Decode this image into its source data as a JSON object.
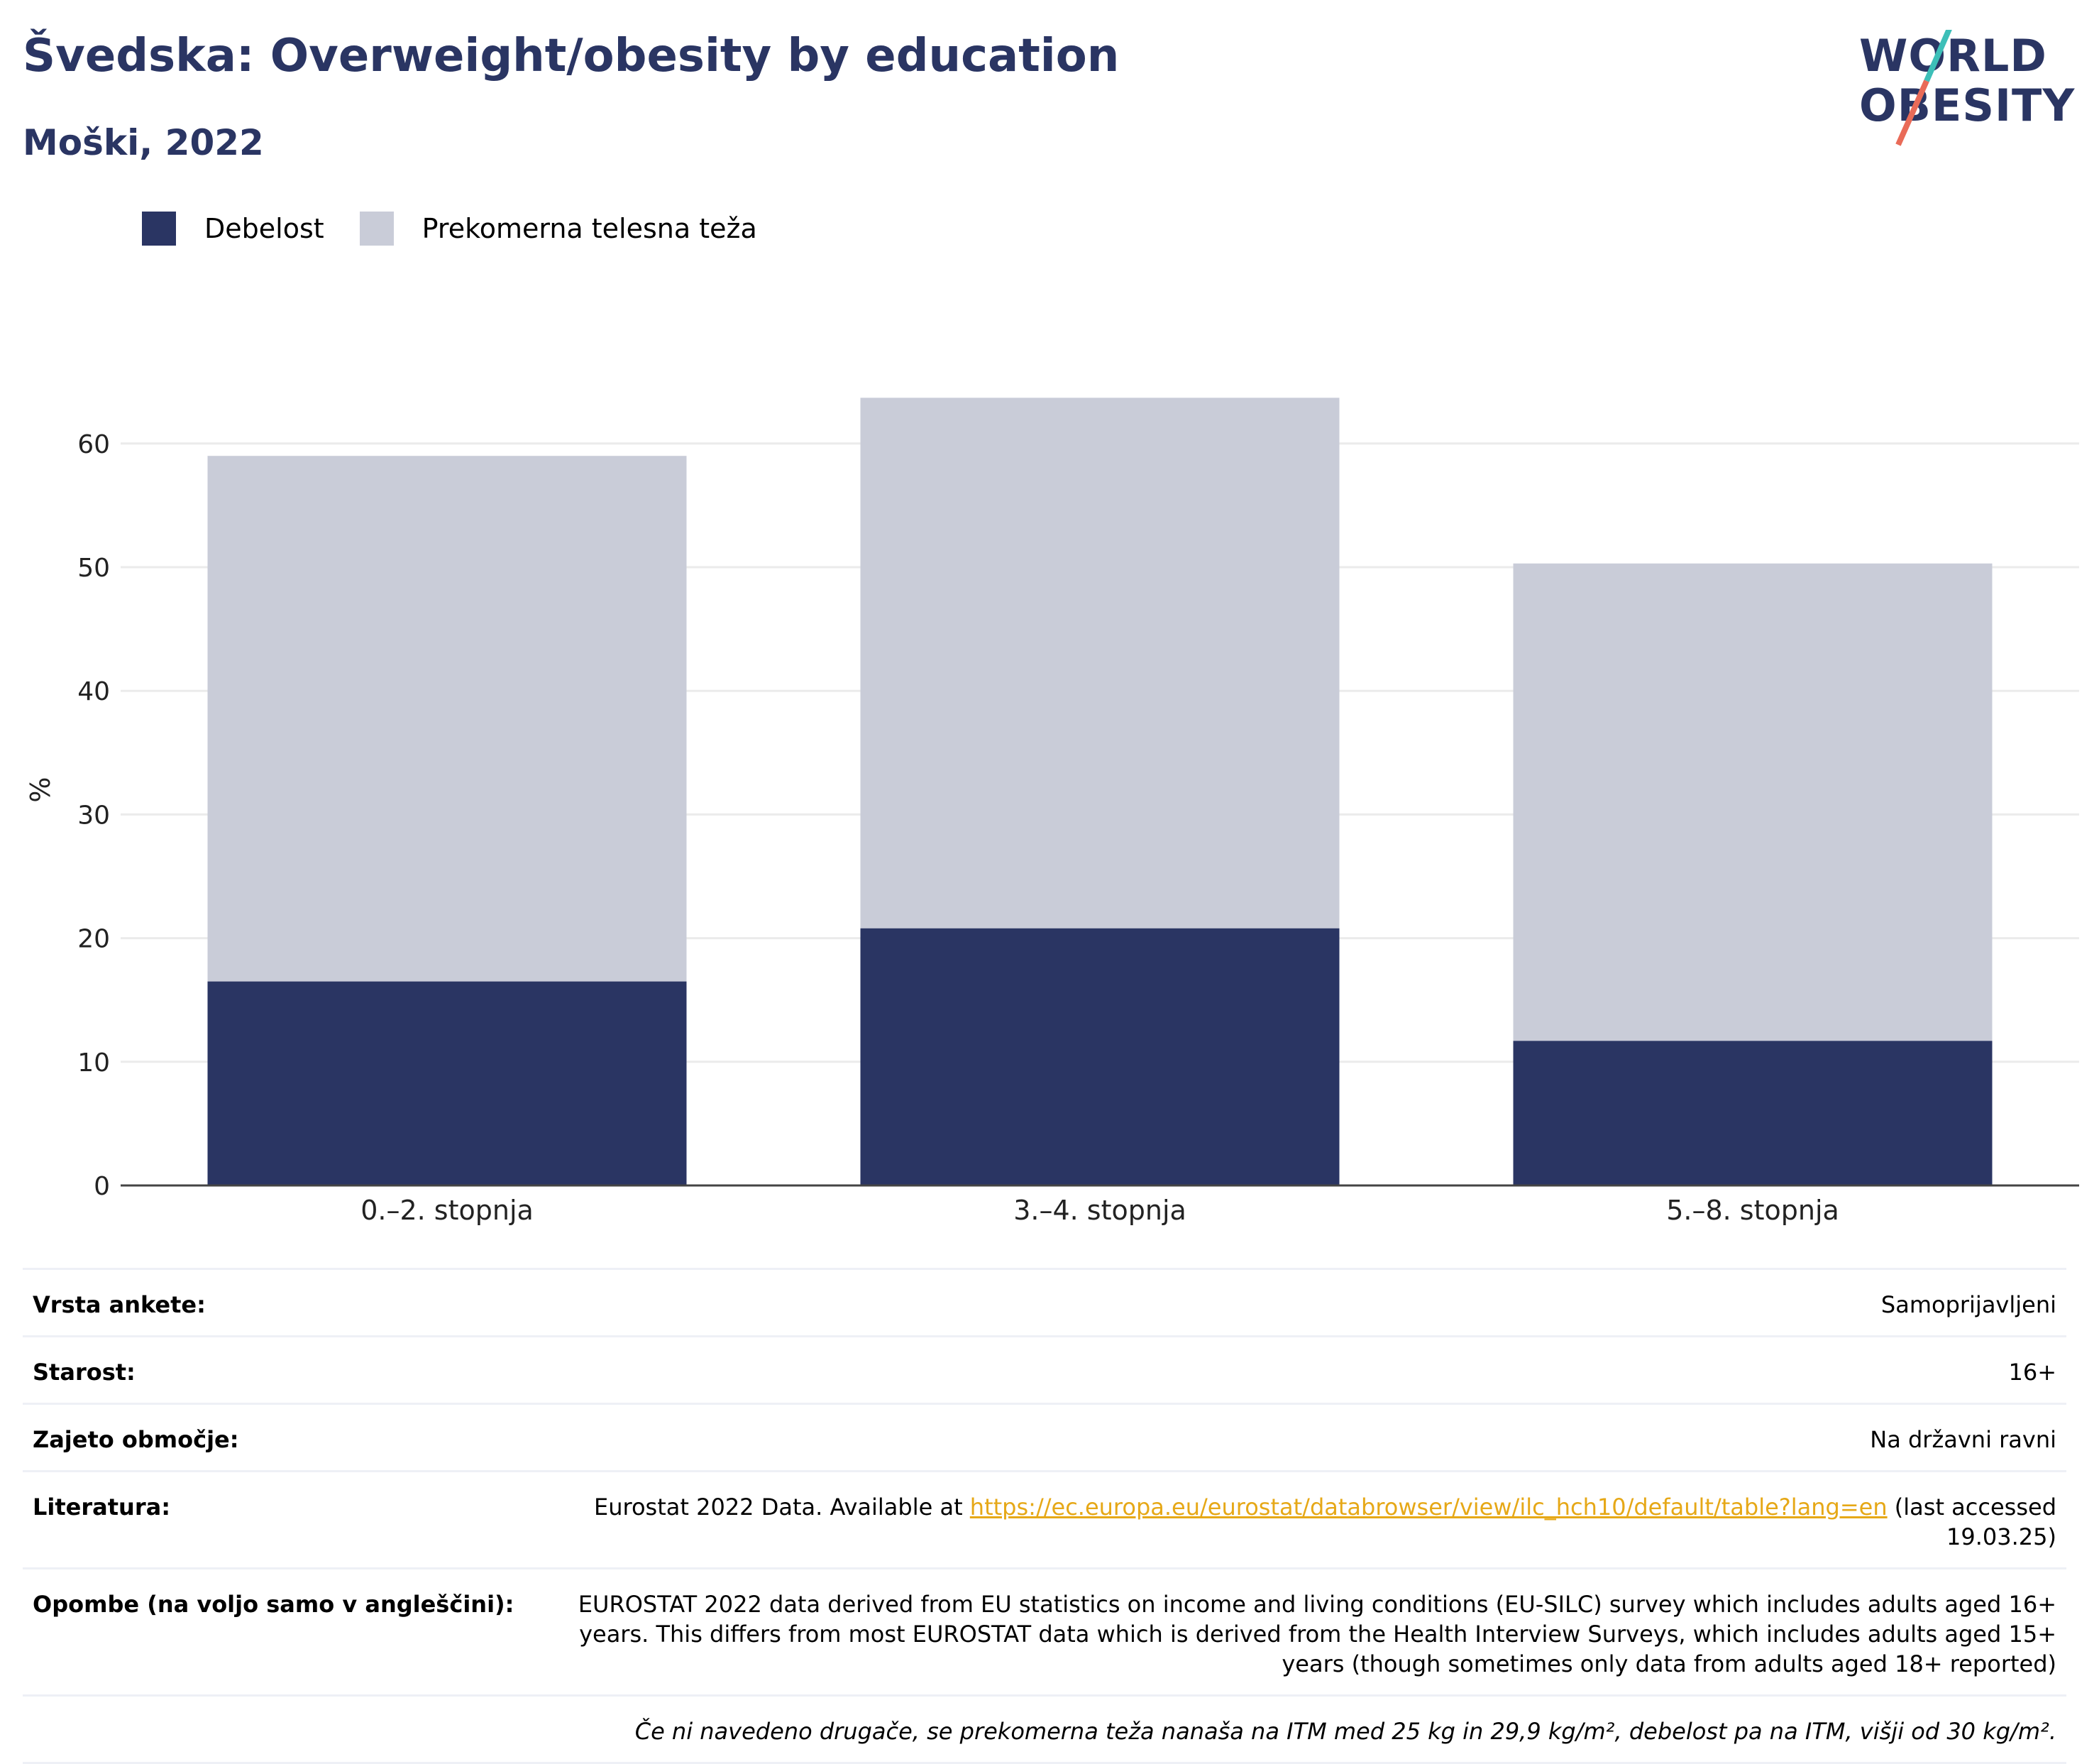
{
  "header": {
    "title": "Švedska: Overweight/obesity by education",
    "subtitle": "Moški, 2022",
    "logo_line1": "WORLD",
    "logo_line2": "OBESITY"
  },
  "legend": {
    "obesity": "Debelost",
    "overweight": "Prekomerna telesna teža"
  },
  "colors": {
    "obesity": "#2a3563",
    "overweight": "#c9ccd8",
    "title": "#2a3563",
    "link": "#e6a817"
  },
  "chart_data": {
    "type": "bar",
    "stacked": true,
    "categories": [
      "0.–2. stopnja",
      "3.–4. stopnja",
      "5.–8. stopnja"
    ],
    "series": [
      {
        "name": "Debelost",
        "values": [
          16.5,
          20.8,
          11.7
        ]
      },
      {
        "name": "Prekomerna telesna teža",
        "values": [
          42.5,
          42.9,
          38.6
        ]
      }
    ],
    "totals": [
      59.0,
      63.7,
      50.3
    ],
    "ylabel": "%",
    "ylim": [
      0,
      64
    ],
    "yticks": [
      0,
      10,
      20,
      30,
      40,
      50,
      60
    ],
    "grid": true,
    "legend_position": "top-left"
  },
  "meta": {
    "survey_label": "Vrsta ankete:",
    "survey_value": "Samoprijavljeni",
    "age_label": "Starost:",
    "age_value": "16+",
    "coverage_label": "Zajeto območje:",
    "coverage_value": "Na državni ravni",
    "refs_label": "Literatura:",
    "refs_prefix": "Eurostat 2022 Data. Available at ",
    "refs_link": "https://ec.europa.eu/eurostat/databrowser/view/ilc_hch10/default/table?lang=en",
    "refs_suffix": " (last accessed 19.03.25)",
    "notes_label": "Opombe (na voljo samo v angleščini):",
    "notes_value": "EUROSTAT 2022 data derived from EU statistics on income and living conditions (EU-SILC) survey which includes adults aged 16+ years. This differs from most EUROSTAT data which is derived from the Health Interview Surveys, which includes adults aged 15+ years (though sometimes only data from adults aged 18+ reported)",
    "footnote": "Če ni navedeno drugače, se prekomerna teža nanaša na ITM med 25 kg in 29,9 kg/m², debelost pa na ITM, višji od 30 kg/m²."
  }
}
